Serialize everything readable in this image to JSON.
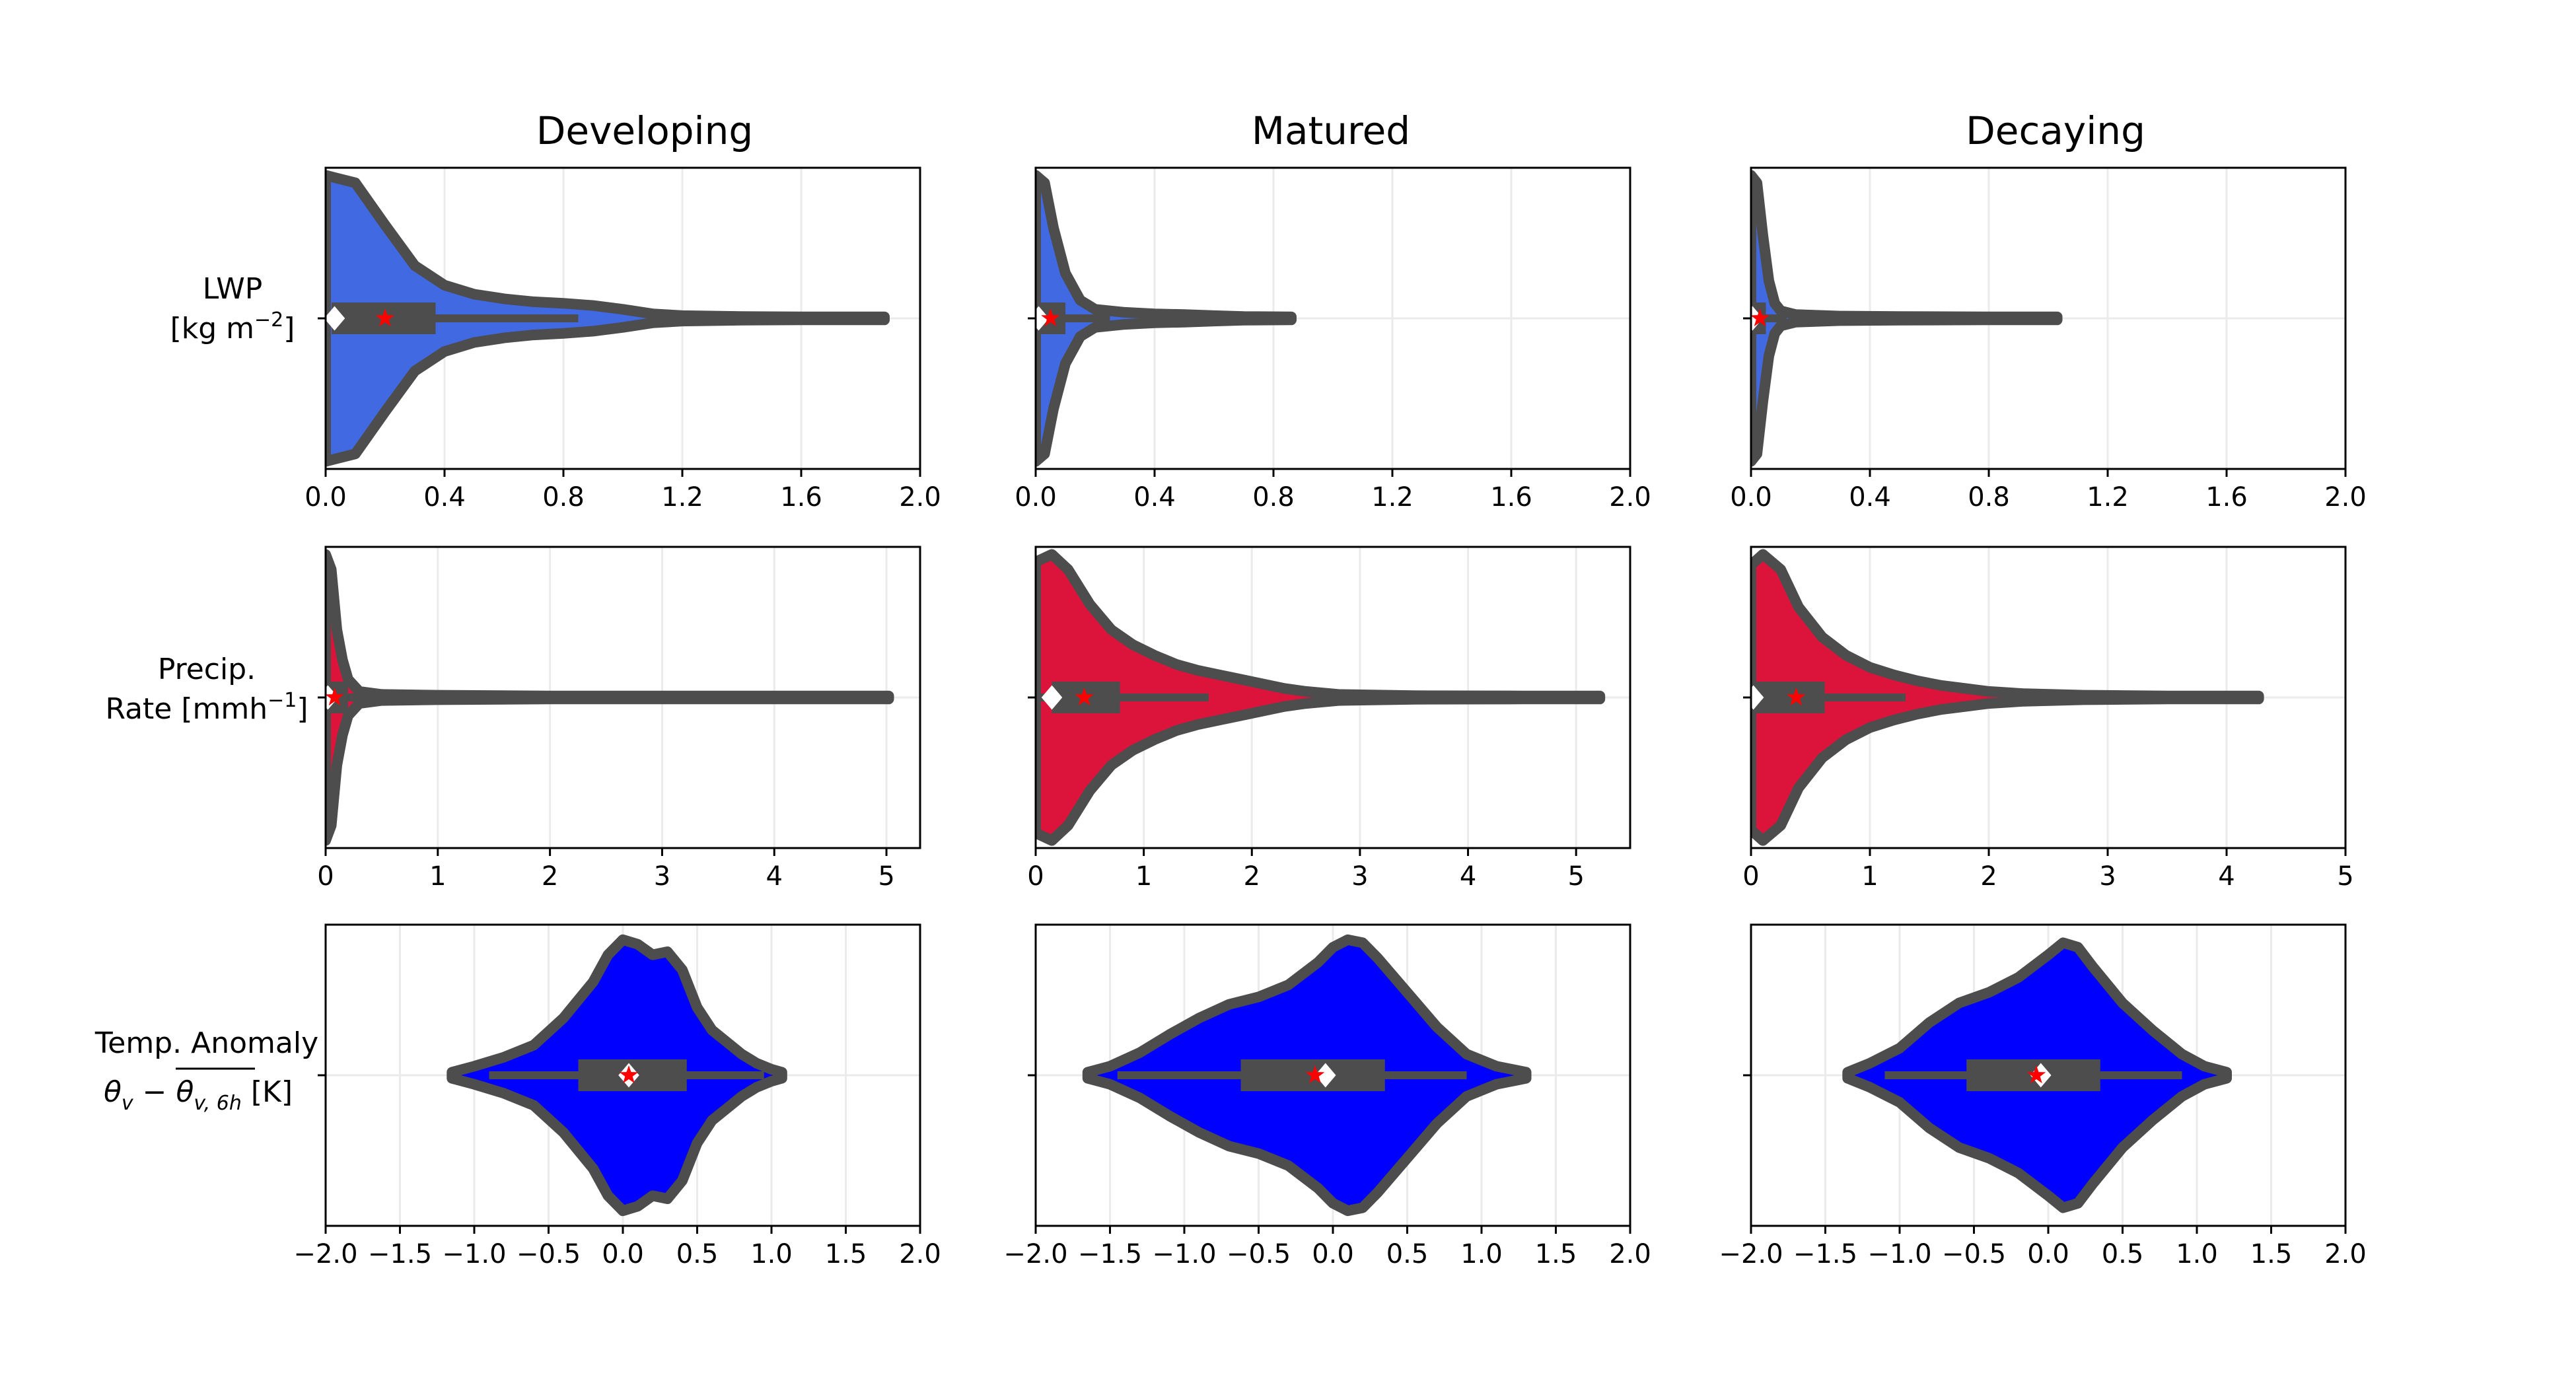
{
  "colors": {
    "lwp_fill": "#4169e1",
    "precip_fill": "#dc143c",
    "temp_fill": "#0000ff",
    "outline": "#4d4d4d",
    "mean_marker": "#ff0000",
    "median_marker": "#ffffff"
  },
  "column_titles": [
    "Developing",
    "Matured",
    "Decaying"
  ],
  "row_labels": [
    {
      "line1": "LWP",
      "line2": "[kg m",
      "line2_sup": "−2",
      "line2_end": "]"
    },
    {
      "line1": "Precip.",
      "line2": "Rate [mmh",
      "line2_sup": "−1",
      "line2_end": "]"
    },
    {
      "line1": "Temp. Anomaly",
      "line2": "θ",
      "line2_sub": "v",
      "line2_mid": " − ",
      "line2_bar": "θ",
      "line2_barsub": "v, 6h",
      "line2_end": " [K]"
    }
  ],
  "axes": [
    {
      "ticks": [
        0.0,
        0.4,
        0.8,
        1.2,
        1.6,
        2.0
      ],
      "tick_labels": [
        "0.0",
        "0.4",
        "0.8",
        "1.2",
        "1.6",
        "2.0"
      ]
    },
    {
      "ticks": [
        0,
        1,
        2,
        3,
        4,
        5
      ],
      "tick_labels": [
        "0",
        "1",
        "2",
        "3",
        "4",
        "5"
      ]
    },
    {
      "ticks": [
        -2.0,
        -1.5,
        -1.0,
        -0.5,
        0.0,
        0.5,
        1.0,
        1.5,
        2.0
      ],
      "tick_labels": [
        "−2.0",
        "−1.5",
        "−1.0",
        "−0.5",
        "0.0",
        "0.5",
        "1.0",
        "1.5",
        "2.0"
      ]
    }
  ],
  "chart_data": [
    {
      "type": "violin",
      "row": 0,
      "col": 0,
      "series_label": "LWP",
      "phase": "Developing",
      "xlim": [
        0,
        2.0
      ],
      "grid": true,
      "profile": [
        [
          0.0,
          0.95
        ],
        [
          0.1,
          0.9
        ],
        [
          0.2,
          0.62
        ],
        [
          0.3,
          0.35
        ],
        [
          0.4,
          0.22
        ],
        [
          0.5,
          0.16
        ],
        [
          0.6,
          0.13
        ],
        [
          0.7,
          0.11
        ],
        [
          0.8,
          0.1
        ],
        [
          0.9,
          0.085
        ],
        [
          1.0,
          0.06
        ],
        [
          1.1,
          0.03
        ],
        [
          1.2,
          0.018
        ],
        [
          1.4,
          0.012
        ],
        [
          1.6,
          0.01
        ],
        [
          1.88,
          0.01
        ]
      ],
      "q1": 0.02,
      "q3": 0.37,
      "whisker_low": 0.0,
      "whisker_high": 0.85,
      "median": 0.03,
      "mean": 0.2
    },
    {
      "type": "violin",
      "row": 0,
      "col": 1,
      "series_label": "LWP",
      "phase": "Matured",
      "xlim": [
        0,
        2.0
      ],
      "grid": true,
      "profile": [
        [
          0.0,
          0.95
        ],
        [
          0.03,
          0.9
        ],
        [
          0.06,
          0.6
        ],
        [
          0.1,
          0.3
        ],
        [
          0.15,
          0.12
        ],
        [
          0.2,
          0.06
        ],
        [
          0.3,
          0.04
        ],
        [
          0.4,
          0.03
        ],
        [
          0.5,
          0.025
        ],
        [
          0.6,
          0.018
        ],
        [
          0.7,
          0.012
        ],
        [
          0.86,
          0.01
        ]
      ],
      "q1": 0.0,
      "q3": 0.1,
      "whisker_low": 0.0,
      "whisker_high": 0.25,
      "median": 0.01,
      "mean": 0.05
    },
    {
      "type": "violin",
      "row": 0,
      "col": 2,
      "series_label": "LWP",
      "phase": "Decaying",
      "xlim": [
        0,
        2.0
      ],
      "grid": true,
      "profile": [
        [
          0.0,
          0.95
        ],
        [
          0.02,
          0.9
        ],
        [
          0.04,
          0.55
        ],
        [
          0.06,
          0.25
        ],
        [
          0.08,
          0.1
        ],
        [
          0.1,
          0.05
        ],
        [
          0.15,
          0.025
        ],
        [
          0.3,
          0.015
        ],
        [
          0.5,
          0.012
        ],
        [
          0.8,
          0.01
        ],
        [
          1.03,
          0.01
        ]
      ],
      "q1": 0.0,
      "q3": 0.05,
      "whisker_low": 0.0,
      "whisker_high": 0.12,
      "median": 0.005,
      "mean": 0.03
    },
    {
      "type": "violin",
      "row": 1,
      "col": 0,
      "series_label": "Precip.",
      "phase": "Developing",
      "xlim": [
        0,
        5.3
      ],
      "grid": true,
      "profile": [
        [
          0.0,
          0.95
        ],
        [
          0.05,
          0.85
        ],
        [
          0.1,
          0.45
        ],
        [
          0.15,
          0.25
        ],
        [
          0.2,
          0.12
        ],
        [
          0.3,
          0.04
        ],
        [
          0.5,
          0.02
        ],
        [
          1.0,
          0.015
        ],
        [
          2.0,
          0.01
        ],
        [
          3.0,
          0.01
        ],
        [
          4.0,
          0.01
        ],
        [
          5.02,
          0.01
        ]
      ],
      "q1": 0.0,
      "q3": 0.2,
      "whisker_low": 0.0,
      "whisker_high": 0.5,
      "median": 0.02,
      "mean": 0.08
    },
    {
      "type": "violin",
      "row": 1,
      "col": 1,
      "series_label": "Precip.",
      "phase": "Matured",
      "xlim": [
        0,
        5.5
      ],
      "grid": true,
      "profile": [
        [
          0.0,
          0.9
        ],
        [
          0.15,
          0.95
        ],
        [
          0.3,
          0.85
        ],
        [
          0.5,
          0.62
        ],
        [
          0.7,
          0.45
        ],
        [
          0.9,
          0.35
        ],
        [
          1.1,
          0.28
        ],
        [
          1.3,
          0.22
        ],
        [
          1.5,
          0.18
        ],
        [
          1.7,
          0.15
        ],
        [
          1.9,
          0.12
        ],
        [
          2.1,
          0.09
        ],
        [
          2.3,
          0.06
        ],
        [
          2.5,
          0.04
        ],
        [
          2.8,
          0.02
        ],
        [
          3.5,
          0.012
        ],
        [
          4.5,
          0.01
        ],
        [
          5.22,
          0.01
        ]
      ],
      "q1": 0.15,
      "q3": 0.78,
      "whisker_low": 0.0,
      "whisker_high": 1.6,
      "median": 0.15,
      "mean": 0.45
    },
    {
      "type": "violin",
      "row": 1,
      "col": 2,
      "series_label": "Precip.",
      "phase": "Decaying",
      "xlim": [
        0,
        5.0
      ],
      "grid": true,
      "profile": [
        [
          0.0,
          0.88
        ],
        [
          0.1,
          0.95
        ],
        [
          0.25,
          0.85
        ],
        [
          0.4,
          0.6
        ],
        [
          0.6,
          0.4
        ],
        [
          0.8,
          0.28
        ],
        [
          1.0,
          0.2
        ],
        [
          1.2,
          0.15
        ],
        [
          1.4,
          0.11
        ],
        [
          1.6,
          0.08
        ],
        [
          1.8,
          0.06
        ],
        [
          2.0,
          0.04
        ],
        [
          2.3,
          0.025
        ],
        [
          2.8,
          0.015
        ],
        [
          3.5,
          0.01
        ],
        [
          4.27,
          0.01
        ]
      ],
      "q1": 0.02,
      "q3": 0.62,
      "whisker_low": 0.0,
      "whisker_high": 1.3,
      "median": 0.02,
      "mean": 0.38
    },
    {
      "type": "violin",
      "row": 2,
      "col": 0,
      "series_label": "Temp. Anomaly",
      "phase": "Developing",
      "xlim": [
        -2.0,
        2.0
      ],
      "grid": true,
      "profile": [
        [
          -1.15,
          0.02
        ],
        [
          -1.0,
          0.06
        ],
        [
          -0.8,
          0.12
        ],
        [
          -0.6,
          0.2
        ],
        [
          -0.4,
          0.38
        ],
        [
          -0.2,
          0.62
        ],
        [
          -0.1,
          0.8
        ],
        [
          0.0,
          0.9
        ],
        [
          0.1,
          0.87
        ],
        [
          0.2,
          0.8
        ],
        [
          0.3,
          0.82
        ],
        [
          0.4,
          0.7
        ],
        [
          0.5,
          0.45
        ],
        [
          0.6,
          0.3
        ],
        [
          0.7,
          0.22
        ],
        [
          0.8,
          0.14
        ],
        [
          0.9,
          0.08
        ],
        [
          1.0,
          0.04
        ],
        [
          1.07,
          0.02
        ]
      ],
      "q1": -0.3,
      "q3": 0.43,
      "whisker_low": -0.9,
      "whisker_high": 0.95,
      "median": 0.04,
      "mean": 0.04
    },
    {
      "type": "violin",
      "row": 2,
      "col": 1,
      "series_label": "Temp. Anomaly",
      "phase": "Matured",
      "xlim": [
        -2.0,
        2.0
      ],
      "grid": true,
      "profile": [
        [
          -1.65,
          0.02
        ],
        [
          -1.5,
          0.06
        ],
        [
          -1.3,
          0.15
        ],
        [
          -1.1,
          0.27
        ],
        [
          -0.9,
          0.38
        ],
        [
          -0.7,
          0.47
        ],
        [
          -0.5,
          0.52
        ],
        [
          -0.3,
          0.6
        ],
        [
          -0.1,
          0.75
        ],
        [
          0.0,
          0.85
        ],
        [
          0.1,
          0.9
        ],
        [
          0.2,
          0.88
        ],
        [
          0.3,
          0.78
        ],
        [
          0.5,
          0.55
        ],
        [
          0.7,
          0.32
        ],
        [
          0.9,
          0.14
        ],
        [
          1.1,
          0.06
        ],
        [
          1.3,
          0.02
        ]
      ],
      "q1": -0.62,
      "q3": 0.35,
      "whisker_low": -1.45,
      "whisker_high": 0.9,
      "median": -0.05,
      "mean": -0.12
    },
    {
      "type": "violin",
      "row": 2,
      "col": 2,
      "series_label": "Temp. Anomaly",
      "phase": "Decaying",
      "xlim": [
        -2.0,
        2.0
      ],
      "grid": true,
      "profile": [
        [
          -1.35,
          0.02
        ],
        [
          -1.2,
          0.08
        ],
        [
          -1.0,
          0.18
        ],
        [
          -0.8,
          0.35
        ],
        [
          -0.6,
          0.48
        ],
        [
          -0.4,
          0.55
        ],
        [
          -0.2,
          0.65
        ],
        [
          0.0,
          0.8
        ],
        [
          0.1,
          0.88
        ],
        [
          0.2,
          0.85
        ],
        [
          0.3,
          0.72
        ],
        [
          0.5,
          0.48
        ],
        [
          0.7,
          0.3
        ],
        [
          0.9,
          0.14
        ],
        [
          1.05,
          0.06
        ],
        [
          1.2,
          0.02
        ]
      ],
      "q1": -0.55,
      "q3": 0.35,
      "whisker_low": -1.1,
      "whisker_high": 0.9,
      "median": -0.05,
      "mean": -0.08
    }
  ]
}
